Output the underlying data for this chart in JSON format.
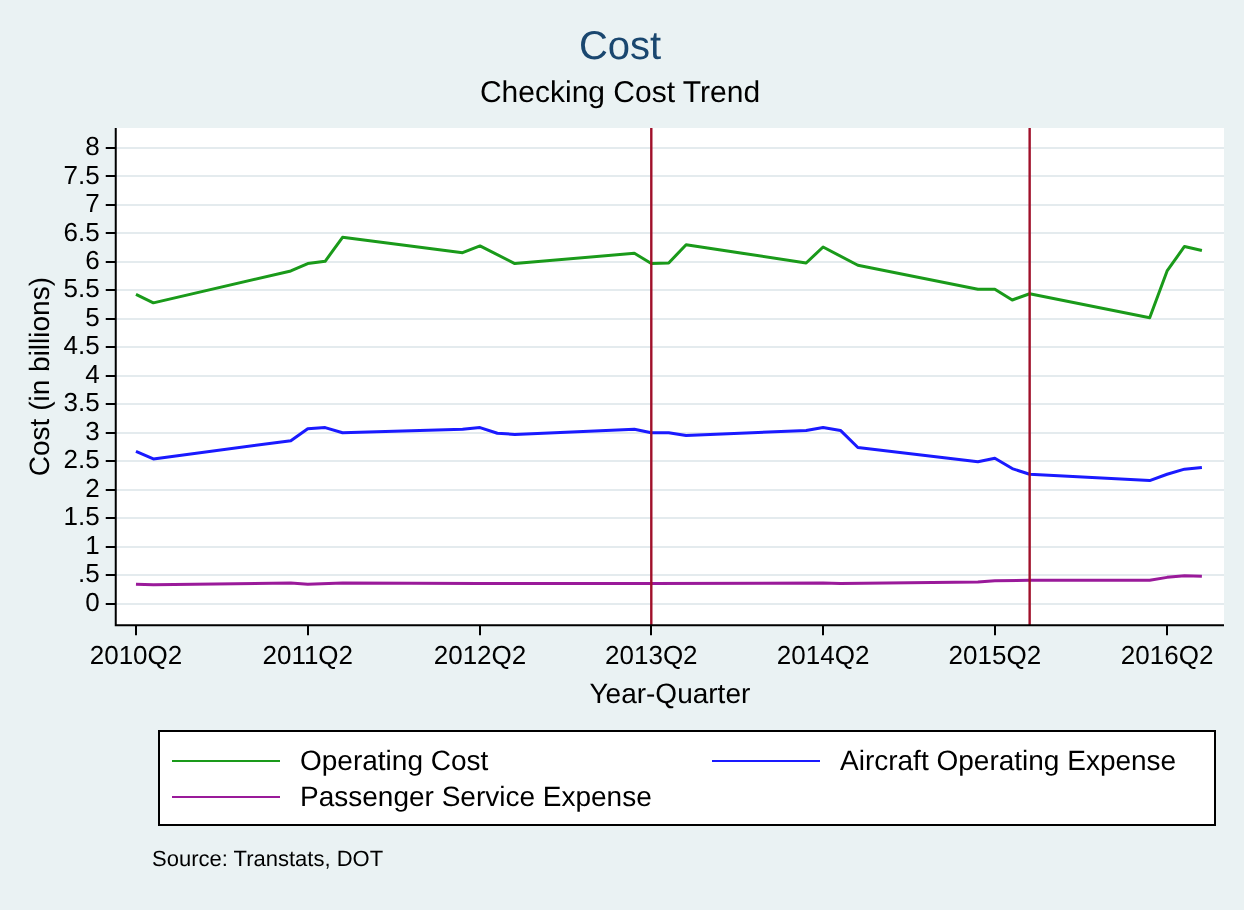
{
  "chart_data": {
    "type": "line",
    "title": "Cost",
    "subtitle": "Checking Cost Trend",
    "xlabel": "Year-Quarter",
    "ylabel": "Cost (in billions)",
    "xlim": [
      "2010-02-17",
      "2016-07-31"
    ],
    "xticks": [
      {
        "value": "2010-04-01",
        "label": "2010Q2"
      },
      {
        "value": "2011-04-01",
        "label": "2011Q2"
      },
      {
        "value": "2012-04-01",
        "label": "2012Q2"
      },
      {
        "value": "2013-04-01",
        "label": "2013Q2"
      },
      {
        "value": "2014-04-01",
        "label": "2014Q2"
      },
      {
        "value": "2015-04-01",
        "label": "2015Q2"
      },
      {
        "value": "2016-04-01",
        "label": "2016Q2"
      }
    ],
    "ylim": [
      -0.38,
      8.35
    ],
    "yticks": [
      0,
      {
        "value": 0.5,
        "label": ".5"
      },
      1,
      1.5,
      2,
      2.5,
      3,
      3.5,
      4,
      4.5,
      5,
      5.5,
      6,
      6.5,
      7,
      7.5,
      8
    ],
    "grid": "y",
    "legend": "bottom",
    "marker": "none",
    "line_style": "solid",
    "series": [
      {
        "name": "Operating Cost",
        "color": "#1a9a1a",
        "x": [
          "2010-04-01",
          "2010-05-08",
          "2011-02-24",
          "2011-04-01",
          "2011-05-08",
          "2011-06-14",
          "2012-02-24",
          "2012-04-01",
          "2012-06-14",
          "2013-02-24",
          "2013-04-01",
          "2013-05-08",
          "2013-06-14",
          "2014-02-24",
          "2014-04-01",
          "2014-06-14",
          "2015-02-24",
          "2015-04-01",
          "2015-05-08",
          "2015-06-14",
          "2016-02-24",
          "2016-04-01",
          "2016-05-08",
          "2016-06-14"
        ],
        "values": [
          5.43,
          5.28,
          5.84,
          5.97,
          6.01,
          6.43,
          6.16,
          6.28,
          5.97,
          6.15,
          5.97,
          5.98,
          6.3,
          5.98,
          6.26,
          5.94,
          5.52,
          5.52,
          5.33,
          5.44,
          5.02,
          5.84,
          6.27,
          6.2
        ]
      },
      {
        "name": "Aircraft Operating Expense",
        "color": "#1a1aff",
        "x": [
          "2010-04-01",
          "2010-05-08",
          "2011-02-24",
          "2011-04-01",
          "2011-05-08",
          "2011-06-14",
          "2012-02-24",
          "2012-04-01",
          "2012-05-08",
          "2012-06-14",
          "2013-02-24",
          "2013-04-01",
          "2013-05-08",
          "2013-06-14",
          "2014-02-24",
          "2014-04-01",
          "2014-05-08",
          "2014-06-14",
          "2015-02-24",
          "2015-04-01",
          "2015-05-08",
          "2015-06-14",
          "2016-02-24",
          "2016-04-01",
          "2016-05-08",
          "2016-06-14"
        ],
        "values": [
          2.67,
          2.54,
          2.86,
          3.07,
          3.09,
          3.0,
          3.06,
          3.09,
          2.99,
          2.97,
          3.06,
          3.0,
          3.0,
          2.95,
          3.04,
          3.09,
          3.04,
          2.74,
          2.49,
          2.55,
          2.37,
          2.27,
          2.16,
          2.27,
          2.36,
          2.39
        ]
      },
      {
        "name": "Passenger Service Expense",
        "color": "#9a1a9a",
        "x": [
          "2010-04-01",
          "2010-05-08",
          "2011-02-24",
          "2011-04-01",
          "2011-06-14",
          "2012-04-01",
          "2013-04-01",
          "2014-04-01",
          "2014-05-08",
          "2015-02-24",
          "2015-04-01",
          "2015-06-14",
          "2016-02-24",
          "2016-04-01",
          "2016-05-08",
          "2016-06-14"
        ],
        "values": [
          0.34,
          0.33,
          0.36,
          0.34,
          0.36,
          0.35,
          0.35,
          0.36,
          0.35,
          0.38,
          0.4,
          0.41,
          0.41,
          0.46,
          0.49,
          0.48
        ]
      }
    ],
    "ref_lines": [
      {
        "axis": "x",
        "value": "2013-04-01",
        "color": "#a0102a"
      },
      {
        "axis": "x",
        "value": "2015-06-14",
        "color": "#a0102a"
      }
    ],
    "annotations": [
      "Source: Transtats, DOT"
    ]
  }
}
